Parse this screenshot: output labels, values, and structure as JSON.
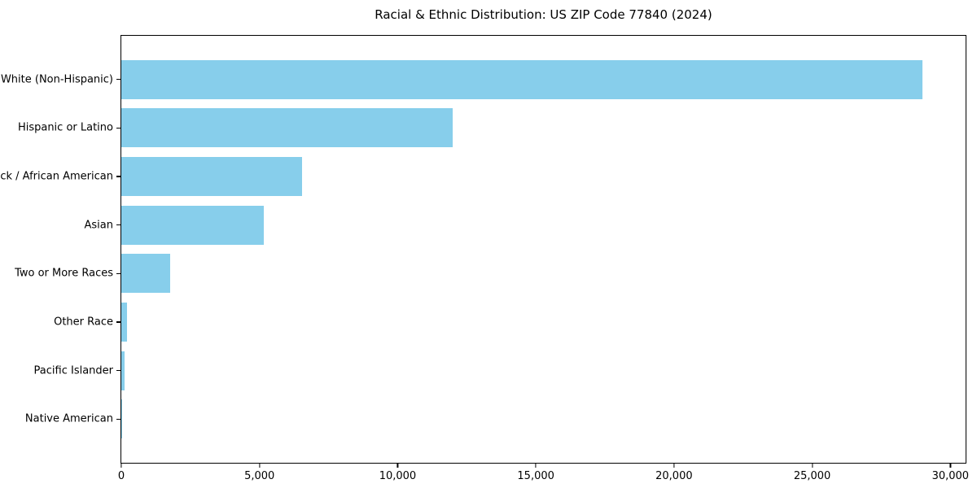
{
  "chart_data": {
    "type": "bar",
    "orientation": "horizontal",
    "title": "Racial & Ethnic Distribution: US ZIP Code 77840 (2024)",
    "categories": [
      "White (Non-Hispanic)",
      "Hispanic or Latino",
      "Black / African American",
      "Asian",
      "Two or More Races",
      "Other Race",
      "Pacific Islander",
      "Native American"
    ],
    "values": [
      29000,
      12000,
      6550,
      5150,
      1770,
      210,
      130,
      30
    ],
    "xlabel": "",
    "ylabel": "",
    "xlim": [
      0,
      30550
    ],
    "x_ticks": [
      0,
      5000,
      10000,
      15000,
      20000,
      25000,
      30000
    ],
    "x_tick_labels": [
      "0",
      "5,000",
      "10,000",
      "15,000",
      "20,000",
      "25,000",
      "30,000"
    ],
    "bar_color": "#87CEEB",
    "axis_color": "#000000",
    "background_color": "#ffffff",
    "grid": false,
    "legend": null
  }
}
